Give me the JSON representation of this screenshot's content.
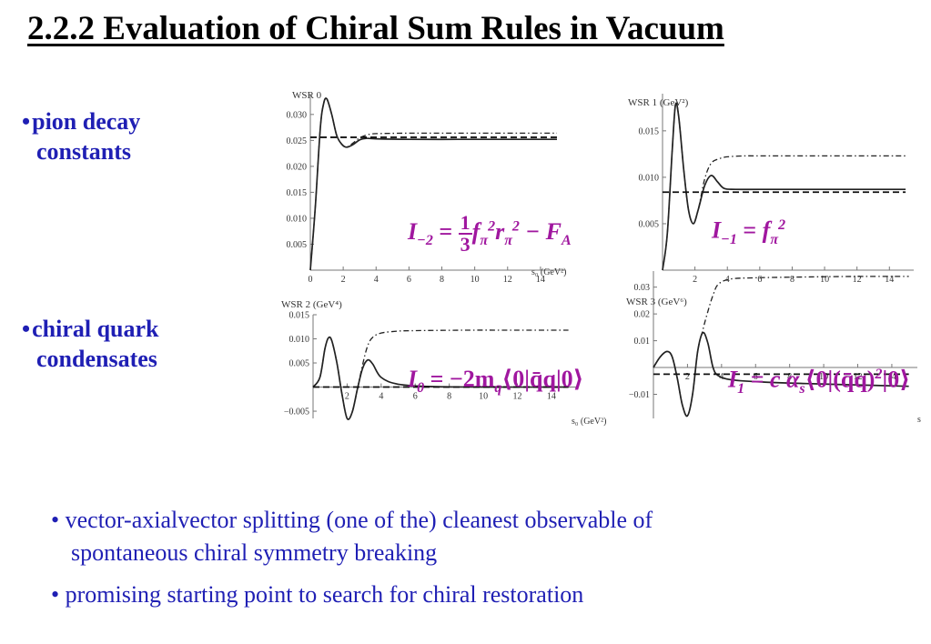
{
  "slide": {
    "title": "2.2.2 Evaluation of Chiral Sum Rules in Vacuum",
    "bullet_pion_line1": "pion decay",
    "bullet_pion_line2": "constants",
    "bullet_condensate_line1": "chiral quark",
    "bullet_condensate_line2": "condensates",
    "bullet_symbol": "•",
    "note_splitting_line1": "vector-axialvector splitting (one of the) cleanest observable of",
    "note_splitting_line2": "spontaneous chiral symmetry breaking",
    "note_restoration": "promising starting point to search for chiral restoration"
  },
  "formulas": {
    "wsr0": {
      "lhs": "I",
      "lhs_sub": "−2",
      "eq": " = ",
      "frac_num": "1",
      "frac_den": "3",
      "f": "f",
      "f_sub": "π",
      "f_sup": "2",
      "r": "r",
      "r_sub": "π",
      "r_sup": "2",
      "minus": " − F",
      "F_sub": "A"
    },
    "wsr1": {
      "lhs": "I",
      "lhs_sub": "−1",
      "eq": " = ",
      "f": "f",
      "f_sub": "π",
      "f_sup": "2"
    },
    "wsr2": {
      "lhs": "I",
      "lhs_sub": "0",
      "eq": "   = −2m",
      "m_sub": "q",
      "bracket": "⟨0|q̄q|0⟩"
    },
    "wsr3": {
      "lhs": "I",
      "lhs_sub": "1",
      "eq": " = c α",
      "a_sub": "s",
      "bracket_open": "⟨0|(q̄q)",
      "power": "2",
      "bracket_close": "|0⟩"
    }
  },
  "chart_data": [
    {
      "type": "line",
      "title": "WSR 0",
      "xlabel": "s₀ (GeV²)",
      "xlim": [
        0,
        15.5
      ],
      "ylim": [
        0,
        0.034
      ],
      "xticks": [
        0,
        2,
        4,
        6,
        8,
        10,
        12,
        14
      ],
      "yticks": [
        0.005,
        0.01,
        0.015,
        0.02,
        0.025,
        0.03
      ],
      "ytick_labels": [
        "0.005",
        "0.010",
        "0.015",
        "0.020",
        "0.025",
        "0.030"
      ],
      "series": [
        {
          "style": "solid",
          "x": [
            0,
            0.3,
            0.6,
            0.8,
            1.0,
            1.3,
            1.6,
            1.9,
            2.2,
            2.6,
            3.0,
            3.4,
            4,
            6,
            9,
            12,
            15
          ],
          "y": [
            0,
            0.012,
            0.027,
            0.032,
            0.033,
            0.03,
            0.026,
            0.0243,
            0.0237,
            0.0242,
            0.0251,
            0.0254,
            0.0253,
            0.0252,
            0.0252,
            0.0252,
            0.0252
          ]
        },
        {
          "style": "dashdot",
          "x": [
            0,
            0.3,
            0.6,
            0.8,
            1.0,
            1.3,
            1.6,
            1.9,
            2.2,
            2.6,
            3.0,
            3.5,
            4,
            6,
            9,
            12,
            15
          ],
          "y": [
            0,
            0.012,
            0.027,
            0.032,
            0.033,
            0.03,
            0.026,
            0.0243,
            0.0237,
            0.0245,
            0.0255,
            0.0261,
            0.0263,
            0.0264,
            0.0264,
            0.0264,
            0.0264
          ]
        },
        {
          "style": "dashed",
          "x": [
            0,
            15
          ],
          "y": [
            0.0256,
            0.0256
          ]
        }
      ]
    },
    {
      "type": "line",
      "title": "WSR 1 (GeV²)",
      "xlabel": "",
      "xlim": [
        0,
        15.5
      ],
      "ylim": [
        0,
        0.019
      ],
      "xticks": [
        2,
        4,
        6,
        8,
        10,
        12,
        14
      ],
      "yticks": [
        0.005,
        0.01,
        0.015
      ],
      "ytick_labels": [
        "0.005",
        "0.010",
        "0.015"
      ],
      "series": [
        {
          "style": "solid",
          "x": [
            0,
            0.3,
            0.6,
            0.8,
            1.0,
            1.3,
            1.6,
            1.9,
            2.2,
            2.6,
            3.0,
            3.4,
            3.8,
            4.5,
            6,
            9,
            12,
            15
          ],
          "y": [
            0,
            0.004,
            0.013,
            0.0178,
            0.0165,
            0.011,
            0.0065,
            0.005,
            0.0065,
            0.0091,
            0.0102,
            0.0095,
            0.0088,
            0.0087,
            0.0087,
            0.0087,
            0.0087,
            0.0087
          ]
        },
        {
          "style": "dashdot",
          "x": [
            0,
            0.3,
            0.6,
            0.8,
            1.0,
            1.3,
            1.6,
            1.9,
            2.2,
            2.6,
            3.0,
            3.5,
            4,
            5,
            6,
            9,
            12,
            15
          ],
          "y": [
            0,
            0.004,
            0.013,
            0.0178,
            0.0165,
            0.011,
            0.0065,
            0.005,
            0.0065,
            0.0098,
            0.0115,
            0.012,
            0.0122,
            0.0123,
            0.0123,
            0.0123,
            0.0123,
            0.0123
          ]
        },
        {
          "style": "dashed",
          "x": [
            0,
            15
          ],
          "y": [
            0.0084,
            0.0084
          ]
        }
      ]
    },
    {
      "type": "line",
      "title": "WSR 2 (GeV⁴)",
      "xlabel": "s₀ (GeV²)",
      "xlim": [
        0,
        15.5
      ],
      "ylim": [
        -0.0065,
        0.015
      ],
      "xticks": [
        2,
        4,
        6,
        8,
        10,
        12,
        14
      ],
      "yticks": [
        -0.005,
        0.005,
        0.01,
        0.015
      ],
      "ytick_labels": [
        "−0.005",
        "0.005",
        "0.010",
        "0.015"
      ],
      "series": [
        {
          "style": "solid",
          "x": [
            0,
            0.4,
            0.7,
            0.9,
            1.1,
            1.4,
            1.7,
            2.0,
            2.3,
            2.6,
            2.9,
            3.2,
            3.5,
            4,
            5,
            7,
            10,
            15
          ],
          "y": [
            0,
            0.002,
            0.008,
            0.0102,
            0.0096,
            0.005,
            -0.0015,
            -0.0065,
            -0.0052,
            -0.0005,
            0.0038,
            0.0056,
            0.0048,
            0.002,
            0.0006,
            0.0001,
            0,
            0
          ]
        },
        {
          "style": "dashdot",
          "x": [
            0,
            0.4,
            0.7,
            0.9,
            1.1,
            1.4,
            1.7,
            2.0,
            2.3,
            2.6,
            2.9,
            3.2,
            3.5,
            4,
            5,
            6,
            9,
            12,
            15
          ],
          "y": [
            0,
            0.002,
            0.008,
            0.0102,
            0.0096,
            0.005,
            -0.0015,
            -0.0065,
            -0.0052,
            -0.0005,
            0.0045,
            0.0085,
            0.0103,
            0.0112,
            0.0116,
            0.0117,
            0.0118,
            0.0118,
            0.0118
          ]
        },
        {
          "style": "dashed",
          "x": [
            0,
            15
          ],
          "y": [
            0,
            0
          ]
        }
      ]
    },
    {
      "type": "line",
      "title": "WSR 3 (GeV⁶)",
      "xlabel": "s",
      "xlim": [
        0,
        15.5
      ],
      "ylim": [
        -0.019,
        0.036
      ],
      "xticks": [
        2,
        4,
        6,
        8,
        10,
        12,
        14
      ],
      "yticks": [
        -0.01,
        0.01,
        0.02,
        0.03
      ],
      "ytick_labels": [
        "−0.01",
        "0.01",
        "0.02",
        "0.03"
      ],
      "series": [
        {
          "style": "solid",
          "x": [
            0,
            0.4,
            0.8,
            1.1,
            1.4,
            1.7,
            2.0,
            2.3,
            2.6,
            2.9,
            3.2,
            3.5,
            3.8,
            4.5,
            6,
            9,
            12,
            15
          ],
          "y": [
            0,
            0.004,
            0.006,
            0.004,
            -0.004,
            -0.014,
            -0.018,
            -0.01,
            0.006,
            0.013,
            0.009,
            0.0,
            -0.003,
            -0.0045,
            -0.0053,
            -0.006,
            -0.0065,
            -0.007
          ]
        },
        {
          "style": "dashdot",
          "x": [
            0,
            0.4,
            0.8,
            1.1,
            1.4,
            1.7,
            2.0,
            2.3,
            2.6,
            2.9,
            3.2,
            3.5,
            3.8,
            4.5,
            6,
            9,
            12,
            15
          ],
          "y": [
            0,
            0.004,
            0.006,
            0.004,
            -0.004,
            -0.014,
            -0.018,
            -0.01,
            0.006,
            0.014,
            0.021,
            0.027,
            0.031,
            0.033,
            0.0335,
            0.0338,
            0.034,
            0.034
          ]
        },
        {
          "style": "dashed",
          "x": [
            0,
            15
          ],
          "y": [
            -0.0025,
            -0.0025
          ]
        }
      ]
    }
  ]
}
